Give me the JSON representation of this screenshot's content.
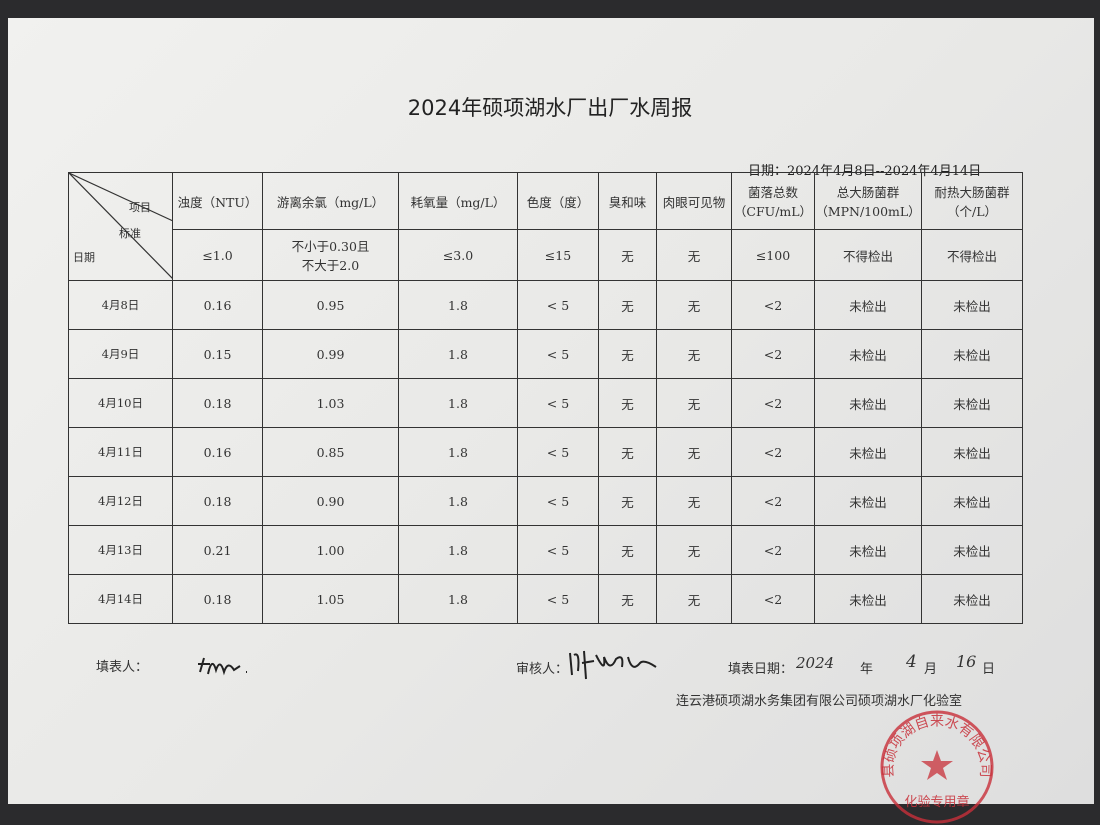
{
  "title": "2024年硕项湖水厂出厂水周报",
  "date_range": "日期：2024年4月8日--2024年4月14日",
  "corner": {
    "item": "项目",
    "standard": "标准",
    "date": "日期"
  },
  "columns": [
    {
      "name": "浊度（NTU）",
      "standard": "≤1.0"
    },
    {
      "name": "游离余氯（mg/L）",
      "standard": "不小于0.30且\n不大于2.0"
    },
    {
      "name": "耗氧量（mg/L）",
      "standard": "≤3.0"
    },
    {
      "name": "色度（度）",
      "standard": "≤15"
    },
    {
      "name": "臭和味",
      "standard": "无"
    },
    {
      "name": "肉眼可见物",
      "standard": "无"
    },
    {
      "name": "菌落总数\n（CFU/mL）",
      "standard": "≤100"
    },
    {
      "name": "总大肠菌群\n（MPN/100mL）",
      "standard": "不得检出"
    },
    {
      "name": "耐热大肠菌群\n（个/L）",
      "standard": "不得检出"
    }
  ],
  "rows": [
    {
      "date": "4月8日",
      "values": [
        "0.16",
        "0.95",
        "1.8",
        "< 5",
        "无",
        "无",
        "<2",
        "未检出",
        "未检出"
      ]
    },
    {
      "date": "4月9日",
      "values": [
        "0.15",
        "0.99",
        "1.8",
        "< 5",
        "无",
        "无",
        "<2",
        "未检出",
        "未检出"
      ]
    },
    {
      "date": "4月10日",
      "values": [
        "0.18",
        "1.03",
        "1.8",
        "< 5",
        "无",
        "无",
        "<2",
        "未检出",
        "未检出"
      ]
    },
    {
      "date": "4月11日",
      "values": [
        "0.16",
        "0.85",
        "1.8",
        "< 5",
        "无",
        "无",
        "<2",
        "未检出",
        "未检出"
      ]
    },
    {
      "date": "4月12日",
      "values": [
        "0.18",
        "0.90",
        "1.8",
        "< 5",
        "无",
        "无",
        "<2",
        "未检出",
        "未检出"
      ]
    },
    {
      "date": "4月13日",
      "values": [
        "0.21",
        "1.00",
        "1.8",
        "< 5",
        "无",
        "无",
        "<2",
        "未检出",
        "未检出"
      ]
    },
    {
      "date": "4月14日",
      "values": [
        "0.18",
        "1.05",
        "1.8",
        "< 5",
        "无",
        "无",
        "<2",
        "未检出",
        "未检出"
      ]
    }
  ],
  "footer": {
    "filler_label": "填表人：",
    "reviewer_label": "审核人：",
    "fill_date_label": "填表日期：",
    "fill_date": {
      "year": "2024",
      "year_unit": "年",
      "month": "4",
      "month_unit": "月",
      "day": "16",
      "day_unit": "日"
    },
    "org": "连云港硕项湖水务集团有限公司硕项湖水厂化验室"
  },
  "seal": {
    "text": "县硕项湖自来水有限公司",
    "bottom": "化验专用章",
    "color": "#c8303a"
  }
}
